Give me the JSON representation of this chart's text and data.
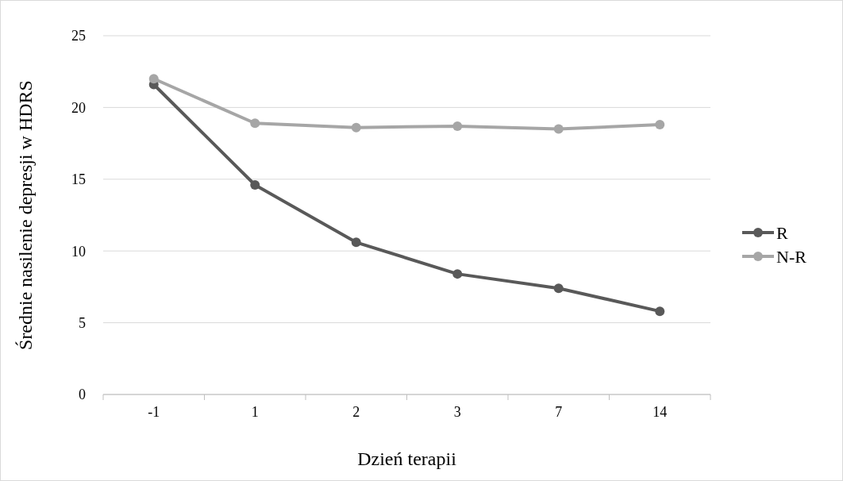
{
  "chart_data": {
    "type": "line",
    "xlabel": "Dzień terapii",
    "ylabel": "Średnie nasilenie depresji w HDRS",
    "categories": [
      "-1",
      "1",
      "2",
      "3",
      "7",
      "14"
    ],
    "series": [
      {
        "name": "R",
        "color": "#595959",
        "values": [
          21.6,
          14.6,
          10.6,
          8.4,
          7.4,
          5.8
        ]
      },
      {
        "name": "N-R",
        "color": "#a6a6a6",
        "values": [
          22.0,
          18.9,
          18.6,
          18.7,
          18.5,
          18.8
        ]
      }
    ],
    "ylim": [
      0,
      25
    ],
    "yticks": [
      0,
      5,
      10,
      15,
      20,
      25
    ],
    "grid": "y",
    "legend": "right",
    "marker": "circle",
    "line_style": "solid"
  }
}
